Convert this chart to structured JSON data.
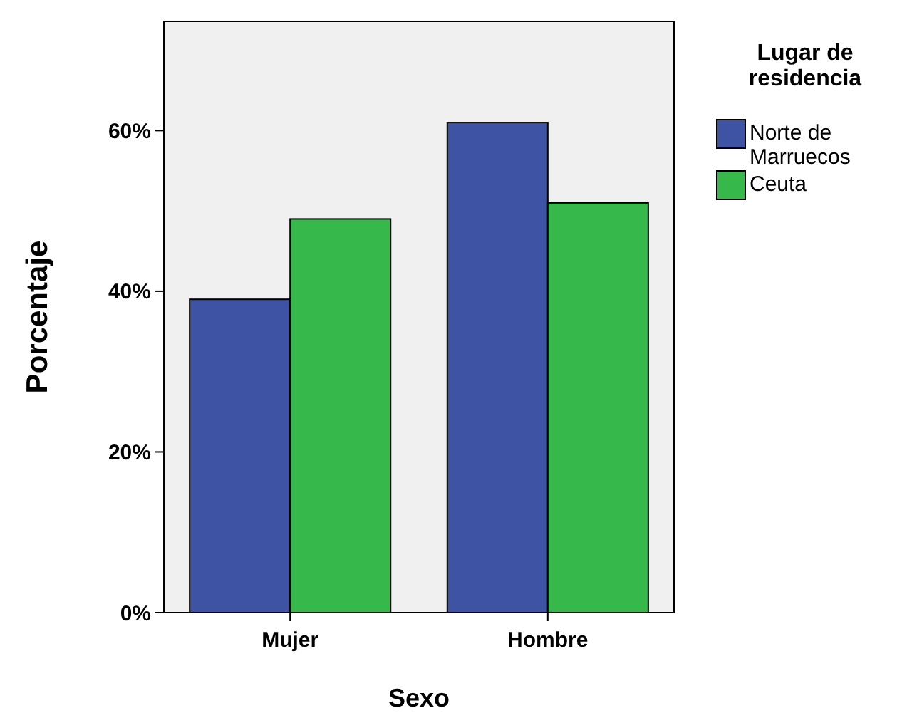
{
  "chart_data": {
    "type": "bar",
    "xlabel": "Sexo",
    "ylabel": "Porcentaje",
    "legend_title": "Lugar de residencia",
    "categories": [
      "Mujer",
      "Hombre"
    ],
    "series": [
      {
        "name": "Norte de Marruecos",
        "color": "#3e53a3",
        "values": [
          39,
          61
        ]
      },
      {
        "name": "Ceuta",
        "color": "#36b94a",
        "values": [
          49,
          51
        ]
      }
    ],
    "ylim": [
      0,
      73.6
    ],
    "yticks": [
      {
        "value": 0,
        "label": "0%"
      },
      {
        "value": 20,
        "label": "20%"
      },
      {
        "value": 40,
        "label": "40%"
      },
      {
        "value": 60,
        "label": "60%"
      }
    ],
    "grid": false,
    "legend": "top right"
  }
}
